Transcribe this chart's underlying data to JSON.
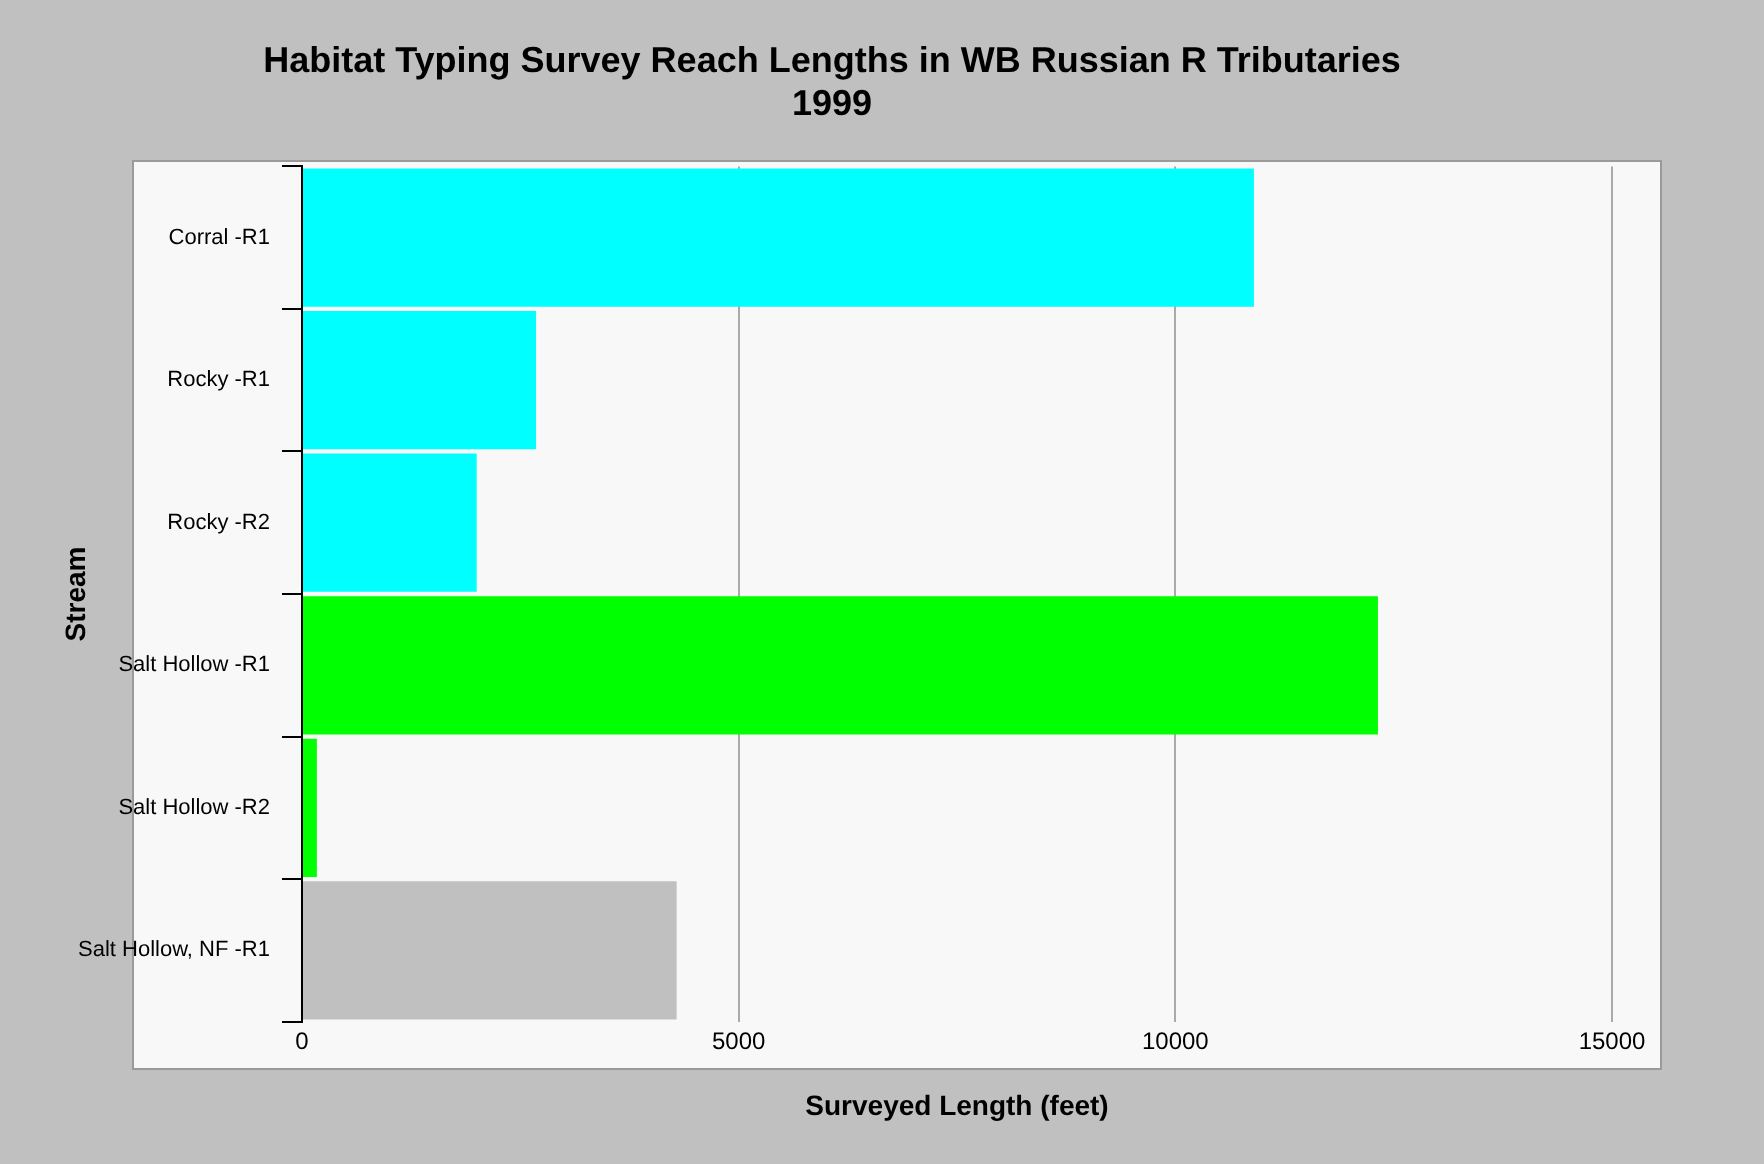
{
  "chart_data": {
    "type": "bar",
    "orientation": "horizontal",
    "title": "Habitat Typing Survey Reach Lengths in WB Russian R Tributaries\n1999",
    "xlabel": "Surveyed Length (feet)",
    "ylabel": "Stream",
    "categories": [
      "Corral -R1",
      "Rocky -R1",
      "Rocky -R2",
      "Salt Hollow -R1",
      "Salt Hollow -R2",
      "Salt Hollow, NF -R1"
    ],
    "values": [
      10900,
      2680,
      2000,
      12320,
      170,
      4290
    ],
    "colors": [
      "#00ffff",
      "#00ffff",
      "#00ffff",
      "#00ff00",
      "#00ff00",
      "#c0c0c0"
    ],
    "xlim": [
      0,
      15000
    ],
    "xticks": [
      0,
      5000,
      10000,
      15000
    ],
    "grid": "x",
    "legend": false
  }
}
